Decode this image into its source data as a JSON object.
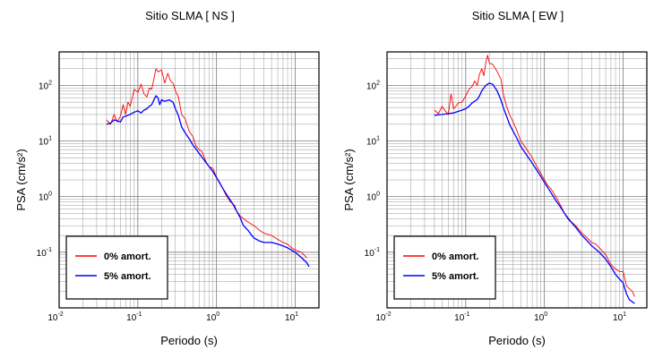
{
  "chart_data": [
    {
      "type": "line",
      "title": "Sitio SLMA [ NS ]",
      "xlabel": "Periodo (s)",
      "ylabel": "PSA (cm/s²)",
      "xscale": "log",
      "yscale": "log",
      "xlim": [
        0.01,
        20
      ],
      "ylim": [
        0.01,
        400
      ],
      "x_ticks": [
        {
          "base": "10",
          "exp": "-2"
        },
        {
          "base": "10",
          "exp": "-1"
        },
        {
          "base": "10",
          "exp": "0"
        },
        {
          "base": "10",
          "exp": "1"
        }
      ],
      "y_ticks": [
        {
          "base": "10",
          "exp": "-1"
        },
        {
          "base": "10",
          "exp": "0"
        },
        {
          "base": "10",
          "exp": "1"
        },
        {
          "base": "10",
          "exp": "2"
        }
      ],
      "grid": true,
      "legend_position": "bottom-left",
      "series": [
        {
          "name": "0% amort.",
          "color": "#ff0000",
          "points": [
            [
              0.04,
              24
            ],
            [
              0.045,
              20
            ],
            [
              0.05,
              30
            ],
            [
              0.055,
              22
            ],
            [
              0.06,
              28
            ],
            [
              0.065,
              45
            ],
            [
              0.07,
              30
            ],
            [
              0.075,
              50
            ],
            [
              0.08,
              42
            ],
            [
              0.09,
              85
            ],
            [
              0.1,
              75
            ],
            [
              0.11,
              105
            ],
            [
              0.12,
              70
            ],
            [
              0.13,
              62
            ],
            [
              0.14,
              90
            ],
            [
              0.15,
              85
            ],
            [
              0.16,
              130
            ],
            [
              0.17,
              200
            ],
            [
              0.18,
              175
            ],
            [
              0.2,
              190
            ],
            [
              0.22,
              110
            ],
            [
              0.24,
              165
            ],
            [
              0.26,
              120
            ],
            [
              0.28,
              110
            ],
            [
              0.3,
              80
            ],
            [
              0.33,
              60
            ],
            [
              0.36,
              30
            ],
            [
              0.4,
              25
            ],
            [
              0.45,
              15
            ],
            [
              0.5,
              12
            ],
            [
              0.55,
              8
            ],
            [
              0.6,
              7
            ],
            [
              0.65,
              6.5
            ],
            [
              0.7,
              5
            ],
            [
              0.75,
              4
            ],
            [
              0.8,
              3.5
            ],
            [
              0.9,
              3.2
            ],
            [
              1.0,
              2.2
            ],
            [
              1.1,
              1.8
            ],
            [
              1.2,
              1.4
            ],
            [
              1.3,
              1.1
            ],
            [
              1.5,
              0.8
            ],
            [
              1.7,
              0.7
            ],
            [
              1.8,
              0.55
            ],
            [
              2.0,
              0.45
            ],
            [
              2.2,
              0.4
            ],
            [
              2.5,
              0.35
            ],
            [
              3.0,
              0.3
            ],
            [
              3.5,
              0.25
            ],
            [
              4.0,
              0.22
            ],
            [
              5.0,
              0.2
            ],
            [
              6.0,
              0.17
            ],
            [
              7.0,
              0.15
            ],
            [
              8.0,
              0.14
            ],
            [
              9.0,
              0.12
            ],
            [
              10,
              0.11
            ],
            [
              12,
              0.1
            ],
            [
              14,
              0.08
            ]
          ]
        },
        {
          "name": "5% amort.",
          "color": "#0000ff",
          "points": [
            [
              0.04,
              20
            ],
            [
              0.045,
              21
            ],
            [
              0.05,
              24
            ],
            [
              0.055,
              23
            ],
            [
              0.06,
              22
            ],
            [
              0.065,
              27
            ],
            [
              0.07,
              28
            ],
            [
              0.08,
              30
            ],
            [
              0.09,
              33
            ],
            [
              0.1,
              35
            ],
            [
              0.11,
              32
            ],
            [
              0.12,
              36
            ],
            [
              0.13,
              38
            ],
            [
              0.14,
              42
            ],
            [
              0.15,
              45
            ],
            [
              0.16,
              55
            ],
            [
              0.17,
              65
            ],
            [
              0.18,
              60
            ],
            [
              0.19,
              45
            ],
            [
              0.2,
              55
            ],
            [
              0.22,
              52
            ],
            [
              0.25,
              55
            ],
            [
              0.28,
              50
            ],
            [
              0.3,
              38
            ],
            [
              0.33,
              28
            ],
            [
              0.36,
              18
            ],
            [
              0.4,
              14
            ],
            [
              0.45,
              11
            ],
            [
              0.5,
              8.5
            ],
            [
              0.6,
              6
            ],
            [
              0.7,
              4.5
            ],
            [
              0.8,
              3.5
            ],
            [
              0.9,
              2.8
            ],
            [
              1.0,
              2.2
            ],
            [
              1.2,
              1.4
            ],
            [
              1.4,
              1.0
            ],
            [
              1.6,
              0.75
            ],
            [
              1.8,
              0.55
            ],
            [
              2.0,
              0.42
            ],
            [
              2.2,
              0.3
            ],
            [
              2.5,
              0.25
            ],
            [
              2.8,
              0.2
            ],
            [
              3.0,
              0.18
            ],
            [
              3.5,
              0.16
            ],
            [
              4.0,
              0.15
            ],
            [
              5.0,
              0.15
            ],
            [
              6.0,
              0.14
            ],
            [
              7.0,
              0.13
            ],
            [
              8.0,
              0.12
            ],
            [
              10,
              0.1
            ],
            [
              12,
              0.08
            ],
            [
              14,
              0.065
            ],
            [
              15,
              0.055
            ]
          ]
        }
      ]
    },
    {
      "type": "line",
      "title": "Sitio SLMA [ EW ]",
      "xlabel": "Periodo (s)",
      "ylabel": "PSA (cm/s²)",
      "xscale": "log",
      "yscale": "log",
      "xlim": [
        0.01,
        20
      ],
      "ylim": [
        0.01,
        400
      ],
      "x_ticks": [
        {
          "base": "10",
          "exp": "-2"
        },
        {
          "base": "10",
          "exp": "-1"
        },
        {
          "base": "10",
          "exp": "0"
        },
        {
          "base": "10",
          "exp": "1"
        }
      ],
      "y_ticks": [
        {
          "base": "10",
          "exp": "-1"
        },
        {
          "base": "10",
          "exp": "0"
        },
        {
          "base": "10",
          "exp": "1"
        },
        {
          "base": "10",
          "exp": "2"
        }
      ],
      "grid": true,
      "legend_position": "bottom-left",
      "series": [
        {
          "name": "0% amort.",
          "color": "#ff0000",
          "points": [
            [
              0.04,
              36
            ],
            [
              0.045,
              31
            ],
            [
              0.05,
              42
            ],
            [
              0.055,
              35
            ],
            [
              0.06,
              30
            ],
            [
              0.065,
              70
            ],
            [
              0.07,
              38
            ],
            [
              0.075,
              42
            ],
            [
              0.08,
              48
            ],
            [
              0.09,
              50
            ],
            [
              0.1,
              65
            ],
            [
              0.11,
              85
            ],
            [
              0.12,
              95
            ],
            [
              0.13,
              120
            ],
            [
              0.14,
              100
            ],
            [
              0.15,
              160
            ],
            [
              0.16,
              200
            ],
            [
              0.17,
              150
            ],
            [
              0.18,
              260
            ],
            [
              0.19,
              350
            ],
            [
              0.2,
              250
            ],
            [
              0.22,
              240
            ],
            [
              0.25,
              180
            ],
            [
              0.28,
              130
            ],
            [
              0.3,
              70
            ],
            [
              0.33,
              42
            ],
            [
              0.36,
              30
            ],
            [
              0.4,
              22
            ],
            [
              0.45,
              15
            ],
            [
              0.5,
              10
            ],
            [
              0.6,
              7
            ],
            [
              0.7,
              5
            ],
            [
              0.8,
              3.5
            ],
            [
              0.9,
              2.6
            ],
            [
              1.0,
              2.0
            ],
            [
              1.1,
              1.6
            ],
            [
              1.2,
              1.4
            ],
            [
              1.4,
              1.0
            ],
            [
              1.6,
              0.7
            ],
            [
              1.8,
              0.5
            ],
            [
              2.0,
              0.42
            ],
            [
              2.2,
              0.35
            ],
            [
              2.5,
              0.3
            ],
            [
              3.0,
              0.22
            ],
            [
              3.5,
              0.18
            ],
            [
              4.0,
              0.15
            ],
            [
              4.5,
              0.14
            ],
            [
              5.0,
              0.12
            ],
            [
              6.0,
              0.09
            ],
            [
              7.0,
              0.06
            ],
            [
              8.0,
              0.05
            ],
            [
              9.0,
              0.045
            ],
            [
              10,
              0.045
            ],
            [
              11,
              0.025
            ],
            [
              12,
              0.022
            ],
            [
              13,
              0.02
            ],
            [
              14,
              0.016
            ]
          ]
        },
        {
          "name": "5% amort.",
          "color": "#0000ff",
          "points": [
            [
              0.04,
              29
            ],
            [
              0.05,
              30
            ],
            [
              0.06,
              31
            ],
            [
              0.07,
              32
            ],
            [
              0.08,
              34
            ],
            [
              0.09,
              36
            ],
            [
              0.1,
              38
            ],
            [
              0.11,
              42
            ],
            [
              0.12,
              48
            ],
            [
              0.13,
              52
            ],
            [
              0.14,
              56
            ],
            [
              0.15,
              65
            ],
            [
              0.16,
              80
            ],
            [
              0.18,
              100
            ],
            [
              0.2,
              110
            ],
            [
              0.22,
              105
            ],
            [
              0.25,
              80
            ],
            [
              0.28,
              55
            ],
            [
              0.3,
              40
            ],
            [
              0.33,
              28
            ],
            [
              0.36,
              20
            ],
            [
              0.4,
              15
            ],
            [
              0.45,
              11
            ],
            [
              0.5,
              8
            ],
            [
              0.6,
              5.5
            ],
            [
              0.7,
              4
            ],
            [
              0.8,
              3
            ],
            [
              0.9,
              2.3
            ],
            [
              1.0,
              1.8
            ],
            [
              1.2,
              1.2
            ],
            [
              1.4,
              0.85
            ],
            [
              1.6,
              0.65
            ],
            [
              1.8,
              0.5
            ],
            [
              2.0,
              0.4
            ],
            [
              2.5,
              0.28
            ],
            [
              3.0,
              0.2
            ],
            [
              3.5,
              0.16
            ],
            [
              4.0,
              0.13
            ],
            [
              5.0,
              0.1
            ],
            [
              6.0,
              0.075
            ],
            [
              7.0,
              0.055
            ],
            [
              8.0,
              0.04
            ],
            [
              9.0,
              0.033
            ],
            [
              10,
              0.028
            ],
            [
              11,
              0.018
            ],
            [
              12,
              0.014
            ],
            [
              14,
              0.012
            ]
          ]
        }
      ]
    }
  ]
}
